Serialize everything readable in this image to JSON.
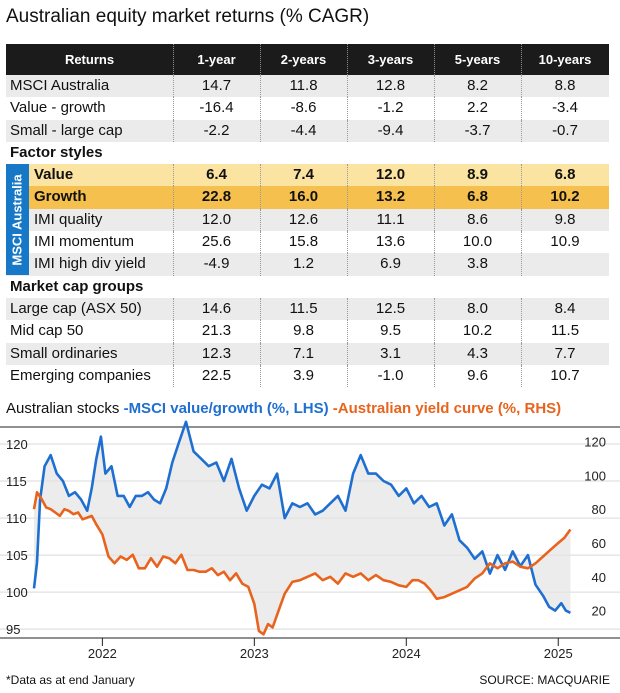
{
  "title": "Australian equity market returns (% CAGR)",
  "table": {
    "headers": [
      "Returns",
      "1-year",
      "2-years",
      "3-years",
      "5-years",
      "10-years"
    ],
    "vertical_label": "MSCI Australia",
    "rows": [
      {
        "label": "MSCI Australia",
        "values": [
          "14.7",
          "11.8",
          "12.8",
          "8.2",
          "8.8"
        ]
      },
      {
        "label": "Value - growth",
        "values": [
          "-16.4",
          "-8.6",
          "-1.2",
          "2.2",
          "-3.4"
        ]
      },
      {
        "label": "Small - large cap",
        "values": [
          "-2.2",
          "-4.4",
          "-9.4",
          "-3.7",
          "-0.7"
        ]
      },
      {
        "label": "Factor styles",
        "values": []
      },
      {
        "label": "Value",
        "values": [
          "6.4",
          "7.4",
          "12.0",
          "8.9",
          "6.8"
        ]
      },
      {
        "label": "Growth",
        "values": [
          "22.8",
          "16.0",
          "13.2",
          "6.8",
          "10.2"
        ]
      },
      {
        "label": "IMI quality",
        "values": [
          "12.0",
          "12.6",
          "11.1",
          "8.6",
          "9.8"
        ]
      },
      {
        "label": "IMI momentum",
        "values": [
          "25.6",
          "15.8",
          "13.6",
          "10.0",
          "10.9"
        ]
      },
      {
        "label": "IMI high div yield",
        "values": [
          "-4.9",
          "1.2",
          "6.9",
          "3.8",
          ""
        ]
      },
      {
        "label": "Market cap groups",
        "values": []
      },
      {
        "label": "Large cap (ASX 50)",
        "values": [
          "14.6",
          "11.5",
          "12.5",
          "8.0",
          "8.4"
        ]
      },
      {
        "label": "Mid cap 50",
        "values": [
          "21.3",
          "9.8",
          "9.5",
          "10.2",
          "11.5"
        ]
      },
      {
        "label": "Small ordinaries",
        "values": [
          "12.3",
          "7.1",
          "3.1",
          "4.3",
          "7.7"
        ]
      },
      {
        "label": "Emerging companies",
        "values": [
          "22.5",
          "3.9",
          "-1.0",
          "9.6",
          "10.7"
        ]
      }
    ]
  },
  "chart": {
    "title_prefix": "Australian stocks",
    "dash": "-",
    "legend_blue": "MSCI value/growth (%, LHS)",
    "legend_orange": "Australian yield curve (%, RHS)",
    "color_blue": "#1f6fd1",
    "color_orange": "#e8641e",
    "footnote": "*Data as at end January",
    "source": "SOURCE: MACQUARIE"
  },
  "chart_data": {
    "type": "line",
    "title": "Australian stocks",
    "xlabel": "",
    "ylabel_left": "MSCI value/growth (%, LHS)",
    "ylabel_right": "Australian yield curve (%, RHS)",
    "x_ticks": [
      "2022",
      "2023",
      "2024",
      "2025"
    ],
    "x_tick_pos": [
      2022,
      2023,
      2024,
      2025
    ],
    "xlim": [
      2021.55,
      2025.13
    ],
    "ylim_left": [
      93.8,
      122.3
    ],
    "yticks_left": [
      95,
      100,
      105,
      110,
      115,
      120
    ],
    "ylim_right": [
      3.8,
      128.6
    ],
    "yticks_right": [
      20,
      40,
      60,
      80,
      100,
      120
    ],
    "series": [
      {
        "name": "MSCI value/growth (%, LHS)",
        "axis": "left",
        "x": [
          2021.55,
          2021.57,
          2021.59,
          2021.62,
          2021.66,
          2021.7,
          2021.74,
          2021.78,
          2021.82,
          2021.86,
          2021.9,
          2021.93,
          2021.96,
          2021.99,
          2022.02,
          2022.06,
          2022.1,
          2022.14,
          2022.18,
          2022.22,
          2022.26,
          2022.3,
          2022.34,
          2022.38,
          2022.42,
          2022.46,
          2022.5,
          2022.55,
          2022.6,
          2022.65,
          2022.7,
          2022.75,
          2022.8,
          2022.85,
          2022.9,
          2022.95,
          2023.0,
          2023.05,
          2023.1,
          2023.15,
          2023.2,
          2023.25,
          2023.3,
          2023.35,
          2023.4,
          2023.45,
          2023.5,
          2023.55,
          2023.6,
          2023.65,
          2023.7,
          2023.75,
          2023.8,
          2023.85,
          2023.9,
          2023.95,
          2024.0,
          2024.05,
          2024.1,
          2024.15,
          2024.2,
          2024.25,
          2024.3,
          2024.35,
          2024.4,
          2024.45,
          2024.5,
          2024.55,
          2024.6,
          2024.65,
          2024.7,
          2024.75,
          2024.8,
          2024.85,
          2024.9,
          2024.94,
          2024.98,
          2025.02,
          2025.05,
          2025.08
        ],
        "values": [
          100.5,
          104,
          112.5,
          117,
          118.5,
          116,
          115,
          113,
          113.5,
          112.5,
          111,
          114,
          118,
          121,
          116,
          117,
          113,
          113,
          111.5,
          113,
          113,
          113.5,
          112.5,
          112,
          114,
          117.5,
          120,
          123,
          119,
          118,
          117,
          117.5,
          115,
          118,
          114,
          111,
          113,
          114.5,
          114,
          116,
          110,
          112,
          111.5,
          112,
          110.5,
          111,
          112,
          113,
          111,
          116,
          118.5,
          116,
          116,
          115,
          114.5,
          113,
          114,
          112,
          113,
          111.5,
          112,
          109,
          110.5,
          107,
          106,
          104.5,
          105.5,
          102.5,
          105,
          103,
          105.5,
          103.5,
          105,
          101,
          99.5,
          98,
          97.5,
          98.5,
          97.5,
          97.2
        ]
      },
      {
        "name": "Australian yield curve (%, RHS)",
        "axis": "right",
        "x": [
          2021.55,
          2021.57,
          2021.6,
          2021.63,
          2021.66,
          2021.69,
          2021.72,
          2021.75,
          2021.78,
          2021.81,
          2021.84,
          2021.87,
          2021.9,
          2021.93,
          2021.96,
          2022.0,
          2022.04,
          2022.08,
          2022.12,
          2022.16,
          2022.2,
          2022.24,
          2022.28,
          2022.32,
          2022.36,
          2022.4,
          2022.44,
          2022.48,
          2022.52,
          2022.56,
          2022.6,
          2022.64,
          2022.68,
          2022.72,
          2022.76,
          2022.8,
          2022.84,
          2022.88,
          2022.92,
          2022.96,
          2023.0,
          2023.03,
          2023.06,
          2023.09,
          2023.12,
          2023.16,
          2023.2,
          2023.25,
          2023.3,
          2023.35,
          2023.4,
          2023.45,
          2023.5,
          2023.55,
          2023.6,
          2023.65,
          2023.7,
          2023.75,
          2023.8,
          2023.85,
          2023.9,
          2023.95,
          2024.0,
          2024.04,
          2024.08,
          2024.12,
          2024.16,
          2024.2,
          2024.25,
          2024.3,
          2024.35,
          2024.4,
          2024.45,
          2024.5,
          2024.55,
          2024.6,
          2024.65,
          2024.7,
          2024.75,
          2024.8,
          2024.85,
          2024.9,
          2024.95,
          2025.0,
          2025.04,
          2025.08
        ],
        "values": [
          80,
          90,
          86,
          81,
          80,
          78,
          76,
          80,
          79,
          77,
          78,
          74,
          75,
          76,
          71,
          65,
          52,
          48,
          52,
          50,
          53,
          45,
          45,
          51,
          46,
          52,
          51,
          48,
          53,
          44,
          44,
          43,
          43,
          45,
          41,
          43,
          38,
          42,
          36,
          34,
          24,
          8,
          6,
          12,
          10,
          20,
          30,
          37,
          38,
          40,
          42,
          38,
          40,
          36,
          42,
          40,
          42,
          38,
          41,
          38,
          37,
          35,
          34,
          38,
          38,
          36,
          32,
          27,
          28,
          30,
          32,
          34,
          39,
          42,
          48,
          45,
          48,
          49,
          46,
          45,
          48,
          52,
          56,
          60,
          63,
          68
        ]
      }
    ]
  }
}
